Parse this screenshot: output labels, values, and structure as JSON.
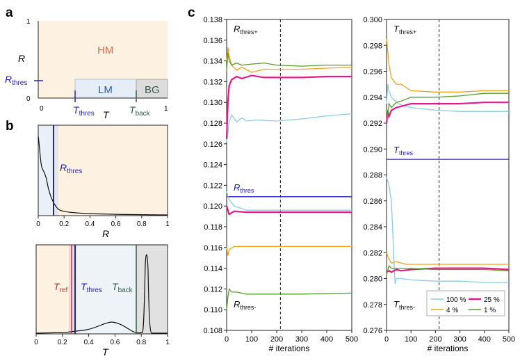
{
  "panel_labels": {
    "a": "a",
    "b": "b",
    "c": "c"
  },
  "panel_a": {
    "y_label": "R",
    "x_label": "T",
    "y_ticks": [
      "1",
      "0"
    ],
    "x_ticks": [
      "0",
      "1"
    ],
    "regions": {
      "hm": "HM",
      "lm": "LM",
      "bg": "BG"
    },
    "rthres_label": "R",
    "rthres_sub": "thres",
    "tthres_label": "T",
    "tthres_sub": "thres",
    "tback_label": "T",
    "tback_sub": "back",
    "colors": {
      "hm_fill": "#fdf1e1",
      "lm_fill": "#e5edf7",
      "bg_fill": "#dcdcdc",
      "hm_text": "#e8684a",
      "lm_text": "#2a5db0",
      "bg_text": "#3b5a48",
      "thres": "#2222bb",
      "back": "#2e5f46"
    }
  },
  "panel_b_top": {
    "x_label": "R",
    "x_ticks": [
      "0",
      "0.2",
      "0.4",
      "0.6",
      "0.8",
      "1"
    ],
    "threshold_label": "R",
    "threshold_sub": "thres",
    "threshold_x": 0.12
  },
  "panel_b_bottom": {
    "x_label": "T",
    "x_ticks": [
      "0",
      "0.2",
      "0.4",
      "0.6",
      "0.8",
      "1"
    ],
    "tref_label": "T",
    "tref_sub": "ref",
    "tref_x": 0.25,
    "tthres_label": "T",
    "tthres_sub": "thres",
    "tthres_x": 0.29,
    "tback_label": "T",
    "tback_sub": "back",
    "tback_x": 0.74,
    "colors": {
      "tref": "#b83a2e",
      "tthres": "#2222bb",
      "tback": "#2e5f46"
    }
  },
  "chart_data": [
    {
      "type": "line",
      "panel": "c-left",
      "xlabel": "# iterations",
      "x_ticks": [
        0,
        100,
        200,
        300,
        400,
        500
      ],
      "xlim": [
        0,
        500
      ],
      "ylim": [
        0.108,
        0.138
      ],
      "y_ticks": [
        "0.138",
        "0.136",
        "0.134",
        "0.132",
        "0.130",
        "0.128",
        "0.126",
        "0.124",
        "0.122",
        "0.120",
        "0.118",
        "0.116",
        "0.114",
        "0.112",
        "0.110",
        "0.108"
      ],
      "vline_x": 215,
      "labels": {
        "upper": "R",
        "upper_sub": "thres+",
        "mid": "R",
        "mid_sub": "thres",
        "lower": "R",
        "lower_sub": "thres-"
      },
      "reference_line": 0.1209,
      "series": [
        {
          "name": "100 %",
          "color": "#89cbe8",
          "upper": [
            [
              0,
              0.1262
            ],
            [
              5,
              0.127
            ],
            [
              10,
              0.1282
            ],
            [
              20,
              0.1288
            ],
            [
              40,
              0.1281
            ],
            [
              60,
              0.1285
            ],
            [
              80,
              0.1282
            ],
            [
              120,
              0.1283
            ],
            [
              200,
              0.1282
            ],
            [
              300,
              0.1284
            ],
            [
              400,
              0.1287
            ],
            [
              500,
              0.1289
            ]
          ],
          "lower": [
            [
              0,
              0.1214
            ],
            [
              10,
              0.1206
            ],
            [
              30,
              0.12
            ],
            [
              80,
              0.1196
            ],
            [
              150,
              0.1196
            ],
            [
              300,
              0.1196
            ],
            [
              500,
              0.1196
            ]
          ]
        },
        {
          "name": "25 %",
          "color": "#e6198b",
          "upper": [
            [
              0,
              0.1265
            ],
            [
              5,
              0.13
            ],
            [
              10,
              0.1316
            ],
            [
              20,
              0.1322
            ],
            [
              40,
              0.1325
            ],
            [
              60,
              0.1323
            ],
            [
              100,
              0.1326
            ],
            [
              150,
              0.1324
            ],
            [
              200,
              0.1324
            ],
            [
              300,
              0.1324
            ],
            [
              400,
              0.1325
            ],
            [
              500,
              0.1325
            ]
          ],
          "lower": [
            [
              0,
              0.12
            ],
            [
              10,
              0.1192
            ],
            [
              30,
              0.1195
            ],
            [
              80,
              0.1194
            ],
            [
              150,
              0.1194
            ],
            [
              300,
              0.1194
            ],
            [
              500,
              0.1194
            ]
          ]
        },
        {
          "name": "4 %",
          "color": "#f2a11c",
          "upper": [
            [
              0,
              0.134
            ],
            [
              5,
              0.1353
            ],
            [
              10,
              0.1345
            ],
            [
              20,
              0.1336
            ],
            [
              40,
              0.1331
            ],
            [
              60,
              0.1334
            ],
            [
              100,
              0.1329
            ],
            [
              150,
              0.1332
            ],
            [
              200,
              0.1332
            ],
            [
              300,
              0.1332
            ],
            [
              400,
              0.1333
            ],
            [
              500,
              0.1334
            ]
          ],
          "lower": [
            [
              0,
              0.116
            ],
            [
              5,
              0.1152
            ],
            [
              10,
              0.1158
            ],
            [
              30,
              0.1161
            ],
            [
              80,
              0.1161
            ],
            [
              150,
              0.1161
            ],
            [
              300,
              0.1161
            ],
            [
              500,
              0.1161
            ]
          ]
        },
        {
          "name": "1 %",
          "color": "#5a9a2a",
          "upper": [
            [
              0,
              0.133
            ],
            [
              5,
              0.1348
            ],
            [
              10,
              0.134
            ],
            [
              20,
              0.1336
            ],
            [
              40,
              0.1338
            ],
            [
              60,
              0.1336
            ],
            [
              100,
              0.1337
            ],
            [
              150,
              0.1338
            ],
            [
              200,
              0.1336
            ],
            [
              300,
              0.1335
            ],
            [
              400,
              0.1336
            ],
            [
              500,
              0.1336
            ]
          ],
          "lower": [
            [
              0,
              0.11
            ],
            [
              5,
              0.1112
            ],
            [
              10,
              0.112
            ],
            [
              20,
              0.1117
            ],
            [
              40,
              0.1117
            ],
            [
              80,
              0.1115
            ],
            [
              150,
              0.1115
            ],
            [
              300,
              0.1115
            ],
            [
              500,
              0.1116
            ]
          ]
        }
      ]
    },
    {
      "type": "line",
      "panel": "c-right",
      "xlabel": "# iterations",
      "x_ticks": [
        0,
        100,
        200,
        300,
        400,
        500
      ],
      "xlim": [
        0,
        500
      ],
      "ylim": [
        0.276,
        0.3
      ],
      "y_ticks": [
        "0.300",
        "0.298",
        "0.296",
        "0.294",
        "0.292",
        "0.290",
        "0.288",
        "0.286",
        "0.284",
        "0.282",
        "0.280",
        "0.278",
        "0.276"
      ],
      "vline_x": 215,
      "labels": {
        "upper": "T",
        "upper_sub": "thres+",
        "mid": "T",
        "mid_sub": "thres",
        "lower": "T",
        "lower_sub": "thres-"
      },
      "reference_line": 0.2892,
      "series": [
        {
          "name": "100 %",
          "color": "#89cbe8",
          "upper": [
            [
              0,
              0.2935
            ],
            [
              5,
              0.295
            ],
            [
              10,
              0.2945
            ],
            [
              20,
              0.294
            ],
            [
              40,
              0.2936
            ],
            [
              60,
              0.2934
            ],
            [
              100,
              0.2932
            ],
            [
              200,
              0.293
            ],
            [
              300,
              0.2929
            ],
            [
              400,
              0.2929
            ],
            [
              500,
              0.2929
            ]
          ],
          "lower": [
            [
              0,
              0.2878
            ],
            [
              10,
              0.2872
            ],
            [
              20,
              0.286
            ],
            [
              30,
              0.2815
            ],
            [
              35,
              0.2796
            ],
            [
              40,
              0.28
            ],
            [
              60,
              0.28
            ],
            [
              100,
              0.2799
            ],
            [
              200,
              0.2798
            ],
            [
              300,
              0.2798
            ],
            [
              400,
              0.2797
            ],
            [
              500,
              0.2797
            ]
          ]
        },
        {
          "name": "25 %",
          "color": "#e6198b",
          "upper": [
            [
              0,
              0.292
            ],
            [
              5,
              0.293
            ],
            [
              10,
              0.2925
            ],
            [
              20,
              0.293
            ],
            [
              40,
              0.2932
            ],
            [
              60,
              0.2933
            ],
            [
              100,
              0.2935
            ],
            [
              200,
              0.2935
            ],
            [
              300,
              0.2935
            ],
            [
              400,
              0.2936
            ],
            [
              500,
              0.2936
            ]
          ],
          "lower": [
            [
              0,
              0.2805
            ],
            [
              10,
              0.2806
            ],
            [
              20,
              0.2805
            ],
            [
              40,
              0.2807
            ],
            [
              60,
              0.2806
            ],
            [
              100,
              0.2807
            ],
            [
              200,
              0.2808
            ],
            [
              300,
              0.2808
            ],
            [
              400,
              0.2808
            ],
            [
              500,
              0.2807
            ]
          ]
        },
        {
          "name": "4 %",
          "color": "#f2a11c",
          "upper": [
            [
              0,
              0.2985
            ],
            [
              5,
              0.2975
            ],
            [
              10,
              0.2965
            ],
            [
              20,
              0.2955
            ],
            [
              40,
              0.295
            ],
            [
              60,
              0.295
            ],
            [
              100,
              0.2945
            ],
            [
              200,
              0.2944
            ],
            [
              300,
              0.2944
            ],
            [
              400,
              0.2945
            ],
            [
              500,
              0.2945
            ]
          ],
          "lower": [
            [
              0,
              0.282
            ],
            [
              10,
              0.2815
            ],
            [
              20,
              0.2812
            ],
            [
              40,
              0.2813
            ],
            [
              80,
              0.2811
            ],
            [
              200,
              0.2811
            ],
            [
              300,
              0.2811
            ],
            [
              400,
              0.2811
            ],
            [
              500,
              0.2811
            ]
          ]
        },
        {
          "name": "1 %",
          "color": "#5a9a2a",
          "upper": [
            [
              0,
              0.293
            ],
            [
              5,
              0.2925
            ],
            [
              10,
              0.2935
            ],
            [
              20,
              0.2932
            ],
            [
              40,
              0.2936
            ],
            [
              60,
              0.2937
            ],
            [
              100,
              0.294
            ],
            [
              200,
              0.294
            ],
            [
              300,
              0.2941
            ],
            [
              400,
              0.2943
            ],
            [
              500,
              0.2943
            ]
          ],
          "lower": [
            [
              0,
              0.2803
            ],
            [
              10,
              0.281
            ],
            [
              20,
              0.2808
            ],
            [
              40,
              0.2808
            ],
            [
              80,
              0.2808
            ],
            [
              200,
              0.2807
            ],
            [
              300,
              0.2807
            ],
            [
              400,
              0.2807
            ],
            [
              500,
              0.2806
            ]
          ]
        }
      ],
      "legend": [
        "100 %",
        "25 %",
        "4 %",
        "1 %"
      ],
      "legend_placement": "bottom-right"
    }
  ]
}
